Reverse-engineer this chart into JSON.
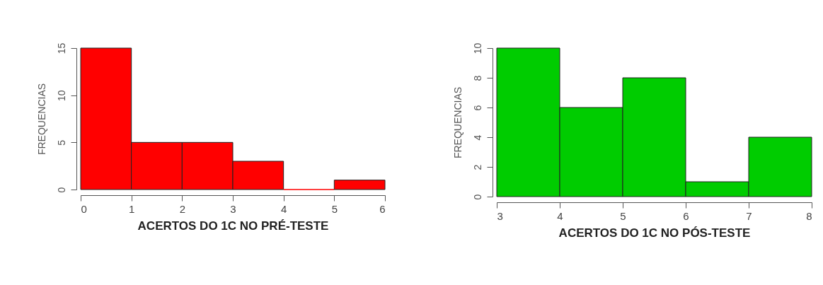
{
  "chart_data": [
    {
      "type": "histogram",
      "xlabel": "ACERTOS DO 1C NO PRÉ-TESTE",
      "ylabel": "FREQUENCIAS",
      "bins": [
        0,
        1,
        2,
        3,
        4,
        5,
        6
      ],
      "values": [
        15,
        5,
        5,
        3,
        0,
        1
      ],
      "color": "#ff0000",
      "xlim": [
        0,
        6
      ],
      "xticks": [
        0,
        1,
        2,
        3,
        4,
        5,
        6
      ],
      "ylim": [
        0,
        15
      ],
      "yticks": [
        0,
        5,
        10,
        15
      ],
      "grid": false
    },
    {
      "type": "histogram",
      "xlabel": "ACERTOS DO 1C NO PÓS-TESTE",
      "ylabel": "FREQUENCIAS",
      "bins": [
        3,
        4,
        5,
        6,
        7,
        8
      ],
      "values": [
        10,
        6,
        8,
        1,
        4
      ],
      "color": "#00cc00",
      "xlim": [
        3,
        8
      ],
      "xticks": [
        3,
        4,
        5,
        6,
        7,
        8
      ],
      "ylim": [
        0,
        10
      ],
      "yticks": [
        0,
        2,
        4,
        6,
        8,
        10
      ],
      "grid": false
    }
  ]
}
